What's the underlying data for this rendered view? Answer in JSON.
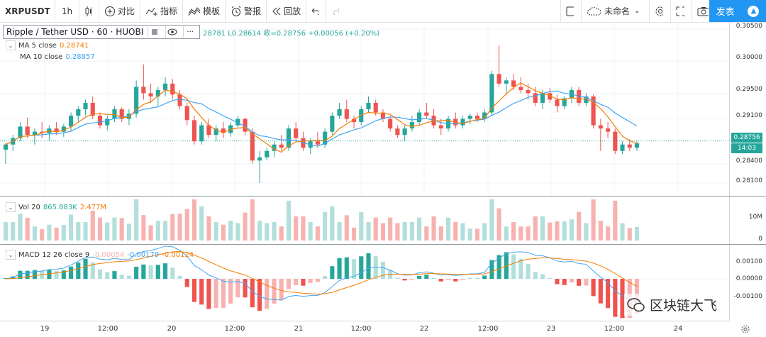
{
  "toolbar": {
    "symbol": "XRPUSDT",
    "interval": "1h",
    "compare": "对比",
    "indicators": "指标",
    "templates": "模板",
    "alert": "警报",
    "replay": "回放",
    "layout_name": "未命名",
    "publish": "发表"
  },
  "legend": {
    "title": "Ripple / Tether USD · 60 · HUOBI",
    "ohlc": "28781 L0.28614 收=0.28756 +0.00056 (+0.20%)"
  },
  "ma5": {
    "label": "MA 5 close",
    "value": "0.28741",
    "color": "#f57c00"
  },
  "ma10": {
    "label": "MA 10 close",
    "value": "0.28857",
    "color": "#42a5f5"
  },
  "vol": {
    "label": "Vol 20",
    "v1": "865.883K",
    "v2": "2.477M"
  },
  "macd": {
    "label": "MACD 12 26 close 9",
    "v1": "-0.00054",
    "v2": "-0.00179",
    "v3": "-0.00124"
  },
  "price_axis": [
    "0.30500",
    "0.30000",
    "0.29500",
    "0.29100",
    "0.28400",
    "0.28100"
  ],
  "current_price": "0.28756",
  "countdown": "14:03",
  "vol_axis": [
    "10M",
    "0"
  ],
  "macd_axis": [
    "0.00100",
    "0.00000",
    "-0.00100"
  ],
  "time_axis": [
    "19",
    "12:00",
    "20",
    "12:00",
    "21",
    "12:00",
    "22",
    "12:00",
    "23",
    "12:00",
    "24"
  ],
  "watermark": "区块链大飞",
  "colors": {
    "up": "#26a69a",
    "down": "#ef5350",
    "up_light": "#b2dfdb",
    "down_light": "#f7b2b0",
    "accent": "#2196f3"
  },
  "chart_data": {
    "type": "candlestick",
    "title": "Ripple / Tether USD · 60 · HUOBI",
    "ylim": [
      0.279,
      0.306
    ],
    "x": [
      "19",
      "12:00",
      "20",
      "12:00",
      "21",
      "12:00",
      "22",
      "12:00",
      "23",
      "12:00",
      "24"
    ],
    "candles": [
      [
        0.2862,
        0.2872,
        0.284,
        0.287
      ],
      [
        0.287,
        0.2885,
        0.286,
        0.288
      ],
      [
        0.288,
        0.2905,
        0.2875,
        0.2898
      ],
      [
        0.2898,
        0.2912,
        0.288,
        0.2885
      ],
      [
        0.2885,
        0.2895,
        0.287,
        0.289
      ],
      [
        0.289,
        0.2905,
        0.288,
        0.2888
      ],
      [
        0.2888,
        0.29,
        0.2875,
        0.2895
      ],
      [
        0.2895,
        0.2905,
        0.2885,
        0.289
      ],
      [
        0.289,
        0.2902,
        0.2882,
        0.2898
      ],
      [
        0.2898,
        0.292,
        0.289,
        0.2915
      ],
      [
        0.2915,
        0.293,
        0.2905,
        0.2925
      ],
      [
        0.2925,
        0.294,
        0.2915,
        0.2935
      ],
      [
        0.2935,
        0.2945,
        0.291,
        0.2915
      ],
      [
        0.2915,
        0.292,
        0.2895,
        0.29
      ],
      [
        0.29,
        0.2915,
        0.2892,
        0.291
      ],
      [
        0.291,
        0.293,
        0.2905,
        0.2925
      ],
      [
        0.2925,
        0.2928,
        0.2905,
        0.291
      ],
      [
        0.291,
        0.2925,
        0.29,
        0.2918
      ],
      [
        0.2918,
        0.297,
        0.2912,
        0.296
      ],
      [
        0.296,
        0.2995,
        0.294,
        0.295
      ],
      [
        0.295,
        0.2965,
        0.2935,
        0.2945
      ],
      [
        0.2945,
        0.296,
        0.293,
        0.2955
      ],
      [
        0.2955,
        0.2975,
        0.2945,
        0.2965
      ],
      [
        0.2965,
        0.2972,
        0.294,
        0.2948
      ],
      [
        0.2948,
        0.2955,
        0.2925,
        0.293
      ],
      [
        0.293,
        0.2935,
        0.29,
        0.2908
      ],
      [
        0.2908,
        0.2915,
        0.287,
        0.2875
      ],
      [
        0.2875,
        0.2905,
        0.287,
        0.29
      ],
      [
        0.29,
        0.291,
        0.288,
        0.2885
      ],
      [
        0.2885,
        0.29,
        0.2875,
        0.2895
      ],
      [
        0.2895,
        0.2905,
        0.288,
        0.2888
      ],
      [
        0.2888,
        0.2905,
        0.2882,
        0.29
      ],
      [
        0.29,
        0.2915,
        0.2895,
        0.291
      ],
      [
        0.291,
        0.2912,
        0.2885,
        0.289
      ],
      [
        0.289,
        0.2895,
        0.284,
        0.2845
      ],
      [
        0.2845,
        0.286,
        0.281,
        0.285
      ],
      [
        0.285,
        0.2865,
        0.2845,
        0.286
      ],
      [
        0.286,
        0.2875,
        0.285,
        0.287
      ],
      [
        0.287,
        0.2885,
        0.286,
        0.2865
      ],
      [
        0.2865,
        0.29,
        0.286,
        0.2895
      ],
      [
        0.2895,
        0.2905,
        0.2875,
        0.288
      ],
      [
        0.288,
        0.289,
        0.286,
        0.2865
      ],
      [
        0.2865,
        0.288,
        0.2855,
        0.2875
      ],
      [
        0.2875,
        0.289,
        0.2865,
        0.287
      ],
      [
        0.287,
        0.2895,
        0.2865,
        0.289
      ],
      [
        0.289,
        0.292,
        0.2885,
        0.2915
      ],
      [
        0.2915,
        0.2935,
        0.291,
        0.2925
      ],
      [
        0.2925,
        0.294,
        0.2905,
        0.291
      ],
      [
        0.291,
        0.2915,
        0.2895,
        0.2905
      ],
      [
        0.2905,
        0.293,
        0.29,
        0.2925
      ],
      [
        0.2925,
        0.2945,
        0.292,
        0.2935
      ],
      [
        0.2935,
        0.294,
        0.2915,
        0.292
      ],
      [
        0.292,
        0.2925,
        0.2905,
        0.291
      ],
      [
        0.291,
        0.2915,
        0.289,
        0.2895
      ],
      [
        0.2895,
        0.29,
        0.288,
        0.2885
      ],
      [
        0.2885,
        0.29,
        0.2875,
        0.2895
      ],
      [
        0.2895,
        0.2915,
        0.289,
        0.2905
      ],
      [
        0.2905,
        0.2925,
        0.29,
        0.292
      ],
      [
        0.292,
        0.2935,
        0.291,
        0.2915
      ],
      [
        0.2915,
        0.2925,
        0.2895,
        0.29
      ],
      [
        0.29,
        0.291,
        0.2885,
        0.2895
      ],
      [
        0.2895,
        0.2915,
        0.289,
        0.291
      ],
      [
        0.291,
        0.292,
        0.2895,
        0.29
      ],
      [
        0.29,
        0.2915,
        0.2895,
        0.291
      ],
      [
        0.291,
        0.2918,
        0.2902,
        0.2915
      ],
      [
        0.2915,
        0.292,
        0.2905,
        0.291
      ],
      [
        0.291,
        0.2925,
        0.2905,
        0.292
      ],
      [
        0.292,
        0.2985,
        0.2915,
        0.298
      ],
      [
        0.298,
        0.3025,
        0.296,
        0.2965
      ],
      [
        0.2965,
        0.2975,
        0.295,
        0.297
      ],
      [
        0.297,
        0.298,
        0.2955,
        0.296
      ],
      [
        0.296,
        0.2975,
        0.295,
        0.2955
      ],
      [
        0.2955,
        0.2965,
        0.294,
        0.295
      ],
      [
        0.295,
        0.296,
        0.293,
        0.2935
      ],
      [
        0.2935,
        0.2955,
        0.2925,
        0.295
      ],
      [
        0.295,
        0.2958,
        0.2935,
        0.294
      ],
      [
        0.294,
        0.2948,
        0.292,
        0.293
      ],
      [
        0.293,
        0.2945,
        0.2925,
        0.2942
      ],
      [
        0.2942,
        0.296,
        0.2935,
        0.2955
      ],
      [
        0.2955,
        0.296,
        0.293,
        0.2935
      ],
      [
        0.2935,
        0.295,
        0.293,
        0.2945
      ],
      [
        0.2945,
        0.2948,
        0.2895,
        0.29
      ],
      [
        0.29,
        0.291,
        0.286,
        0.2895
      ],
      [
        0.2895,
        0.2905,
        0.288,
        0.289
      ],
      [
        0.289,
        0.2895,
        0.2855,
        0.286
      ],
      [
        0.286,
        0.2875,
        0.2855,
        0.287
      ],
      [
        0.287,
        0.2878,
        0.286,
        0.2865
      ],
      [
        0.2865,
        0.2875,
        0.286,
        0.2872
      ]
    ]
  }
}
